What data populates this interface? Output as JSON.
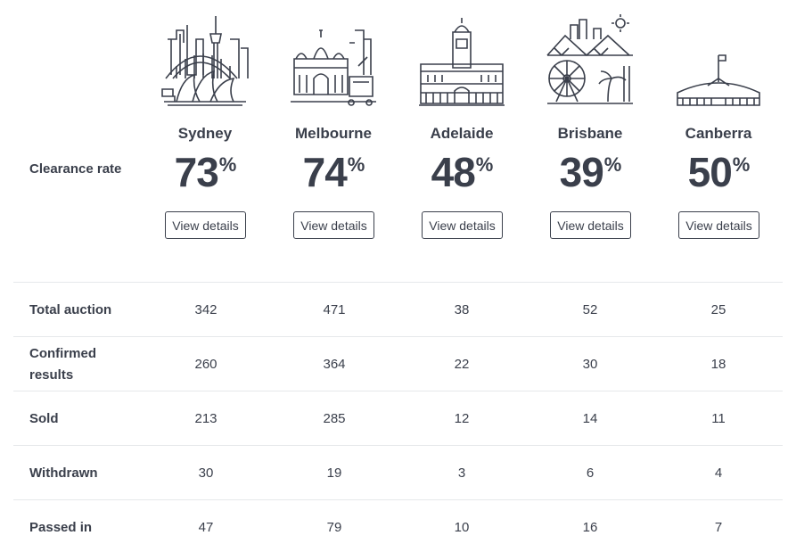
{
  "clearance_label": "Clearance rate",
  "percent_sign": "%",
  "cities": [
    {
      "name": "Sydney",
      "rate": "73",
      "button": "View details",
      "icon": "sydney-skyline-icon"
    },
    {
      "name": "Melbourne",
      "rate": "74",
      "button": "View details",
      "icon": "melbourne-skyline-icon"
    },
    {
      "name": "Adelaide",
      "rate": "48",
      "button": "View details",
      "icon": "adelaide-town-hall-icon"
    },
    {
      "name": "Brisbane",
      "rate": "39",
      "button": "View details",
      "icon": "brisbane-skyline-icon"
    },
    {
      "name": "Canberra",
      "rate": "50",
      "button": "View details",
      "icon": "canberra-parliament-icon"
    }
  ],
  "rows": [
    {
      "label": "Total auction",
      "values": [
        "342",
        "471",
        "38",
        "52",
        "25"
      ]
    },
    {
      "label": "Confirmed results",
      "values": [
        "260",
        "364",
        "22",
        "30",
        "18"
      ]
    },
    {
      "label": "Sold",
      "values": [
        "213",
        "285",
        "12",
        "14",
        "11"
      ]
    },
    {
      "label": "Withdrawn",
      "values": [
        "30",
        "19",
        "3",
        "6",
        "4"
      ]
    },
    {
      "label": "Passed in",
      "values": [
        "47",
        "79",
        "10",
        "16",
        "7"
      ]
    }
  ],
  "colors": {
    "text": "#3a3f4b",
    "divider": "#e6e8eb",
    "background": "#ffffff"
  }
}
